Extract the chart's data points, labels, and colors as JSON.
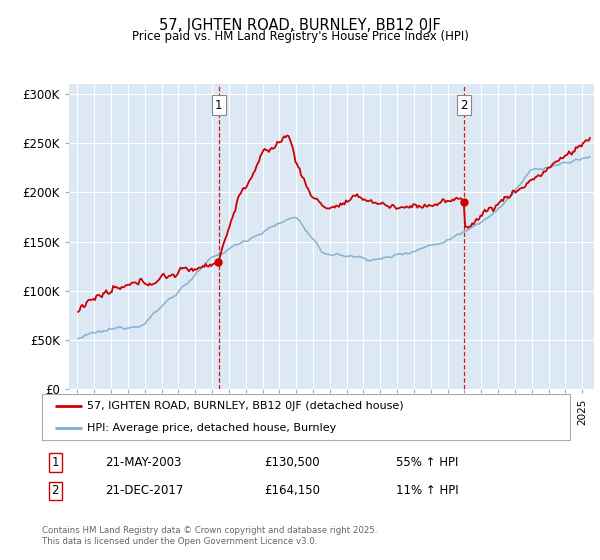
{
  "title": "57, IGHTEN ROAD, BURNLEY, BB12 0JF",
  "subtitle": "Price paid vs. HM Land Registry's House Price Index (HPI)",
  "background_color": "#dce9f5",
  "fig_bg_color": "#ffffff",
  "red_color": "#cc0000",
  "blue_color": "#7aacce",
  "purchase1_date": 2003.39,
  "purchase1_price": 130500,
  "purchase1_label": "1",
  "purchase2_date": 2017.97,
  "purchase2_price": 164150,
  "purchase2_label": "2",
  "legend_line1": "57, IGHTEN ROAD, BURNLEY, BB12 0JF (detached house)",
  "legend_line2": "HPI: Average price, detached house, Burnley",
  "note1_label": "1",
  "note1_date": "21-MAY-2003",
  "note1_price": "£130,500",
  "note1_pct": "55% ↑ HPI",
  "note2_label": "2",
  "note2_date": "21-DEC-2017",
  "note2_price": "£164,150",
  "note2_pct": "11% ↑ HPI",
  "footer": "Contains HM Land Registry data © Crown copyright and database right 2025.\nThis data is licensed under the Open Government Licence v3.0.",
  "ylim": [
    0,
    310000
  ],
  "xlim_start": 1994.5,
  "xlim_end": 2025.7,
  "yticks": [
    0,
    50000,
    100000,
    150000,
    200000,
    250000,
    300000
  ],
  "ytick_labels": [
    "£0",
    "£50K",
    "£100K",
    "£150K",
    "£200K",
    "£250K",
    "£300K"
  ]
}
